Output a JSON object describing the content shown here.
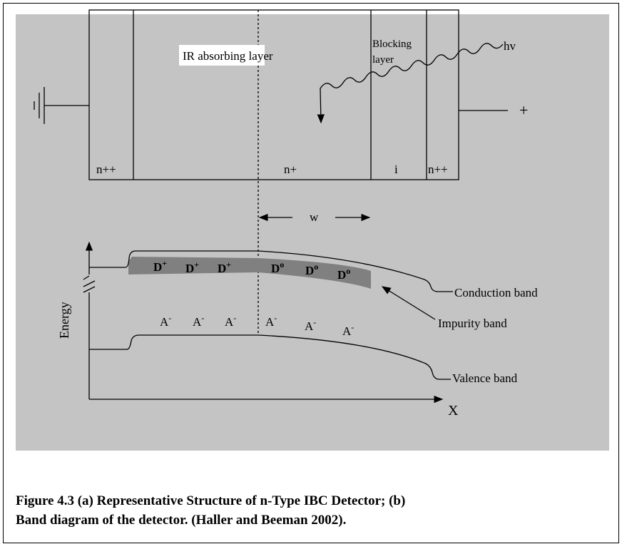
{
  "diagram": {
    "absorbing_layer": "IR absorbing layer",
    "blocking_layer": [
      "Blocking",
      "layer"
    ],
    "photon": "hv",
    "bias": "+",
    "regions": [
      "n++",
      "n+",
      "i",
      "n++"
    ],
    "depletion_width": "w",
    "donors": [
      {
        "letter": "D",
        "sup": "+"
      },
      {
        "letter": "D",
        "sup": "+"
      },
      {
        "letter": "D",
        "sup": "+"
      },
      {
        "letter": "D",
        "sup": "o"
      },
      {
        "letter": "D",
        "sup": "o"
      },
      {
        "letter": "D",
        "sup": "o"
      }
    ],
    "acceptors": [
      {
        "letter": "A",
        "sup": "-"
      },
      {
        "letter": "A",
        "sup": "-"
      },
      {
        "letter": "A",
        "sup": "-"
      },
      {
        "letter": "A",
        "sup": "-"
      },
      {
        "letter": "A",
        "sup": "-"
      },
      {
        "letter": "A",
        "sup": "-"
      }
    ],
    "conduction_band": "Conduction band",
    "impurity_band": "Impurity band",
    "valence_band": "Valence band",
    "y_axis": "Energy",
    "x_axis": "X"
  },
  "caption": [
    "Figure 4.3  (a) Representative Structure of n-Type IBC Detector; (b)",
    "Band diagram of the detector.  (Haller and Beeman 2002)."
  ]
}
